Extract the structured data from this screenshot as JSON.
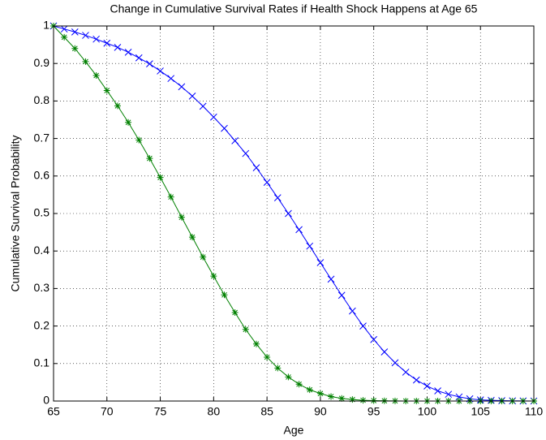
{
  "chart_data": {
    "type": "line",
    "title": "Change in Cumulative Survival Rates if Health Shock Happens at Age 65",
    "x_label": "Age",
    "y_label": "Cumulative Survival Probability",
    "x": [
      65,
      66,
      67,
      68,
      69,
      70,
      71,
      72,
      73,
      74,
      75,
      76,
      77,
      78,
      79,
      80,
      81,
      82,
      83,
      84,
      85,
      86,
      87,
      88,
      89,
      90,
      91,
      92,
      93,
      94,
      95,
      96,
      97,
      98,
      99,
      100,
      101,
      102,
      103,
      104,
      105,
      106,
      107,
      108,
      109,
      110
    ],
    "series": [
      {
        "color": "#0000ff",
        "marker": "x",
        "values": [
          1.0,
          0.992,
          0.984,
          0.975,
          0.965,
          0.954,
          0.943,
          0.93,
          0.915,
          0.899,
          0.88,
          0.86,
          0.838,
          0.813,
          0.786,
          0.757,
          0.727,
          0.694,
          0.66,
          0.622,
          0.583,
          0.542,
          0.5,
          0.457,
          0.413,
          0.369,
          0.325,
          0.282,
          0.24,
          0.2,
          0.164,
          0.131,
          0.102,
          0.077,
          0.056,
          0.04,
          0.027,
          0.018,
          0.011,
          0.006,
          0.003,
          0.002,
          0.001,
          0.0005,
          0.0002,
          0.0001
        ]
      },
      {
        "color": "#008000",
        "marker": "*",
        "values": [
          1.0,
          0.97,
          0.94,
          0.905,
          0.868,
          0.828,
          0.787,
          0.743,
          0.696,
          0.647,
          0.596,
          0.544,
          0.49,
          0.437,
          0.384,
          0.333,
          0.283,
          0.236,
          0.191,
          0.152,
          0.117,
          0.088,
          0.064,
          0.045,
          0.03,
          0.02,
          0.012,
          0.007,
          0.004,
          0.002,
          0.001,
          0.0005,
          0.0002,
          0.0001,
          0,
          0,
          0,
          0,
          0,
          0,
          0,
          0,
          0,
          0,
          0,
          0
        ]
      }
    ],
    "xlim": [
      65,
      110
    ],
    "ylim": [
      0,
      1
    ],
    "xticks": [
      65,
      70,
      75,
      80,
      85,
      90,
      95,
      100,
      105,
      110
    ],
    "yticks": [
      0,
      0.1,
      0.2,
      0.3,
      0.4,
      0.5,
      0.6,
      0.7,
      0.8,
      0.9,
      1
    ],
    "grid": true
  }
}
